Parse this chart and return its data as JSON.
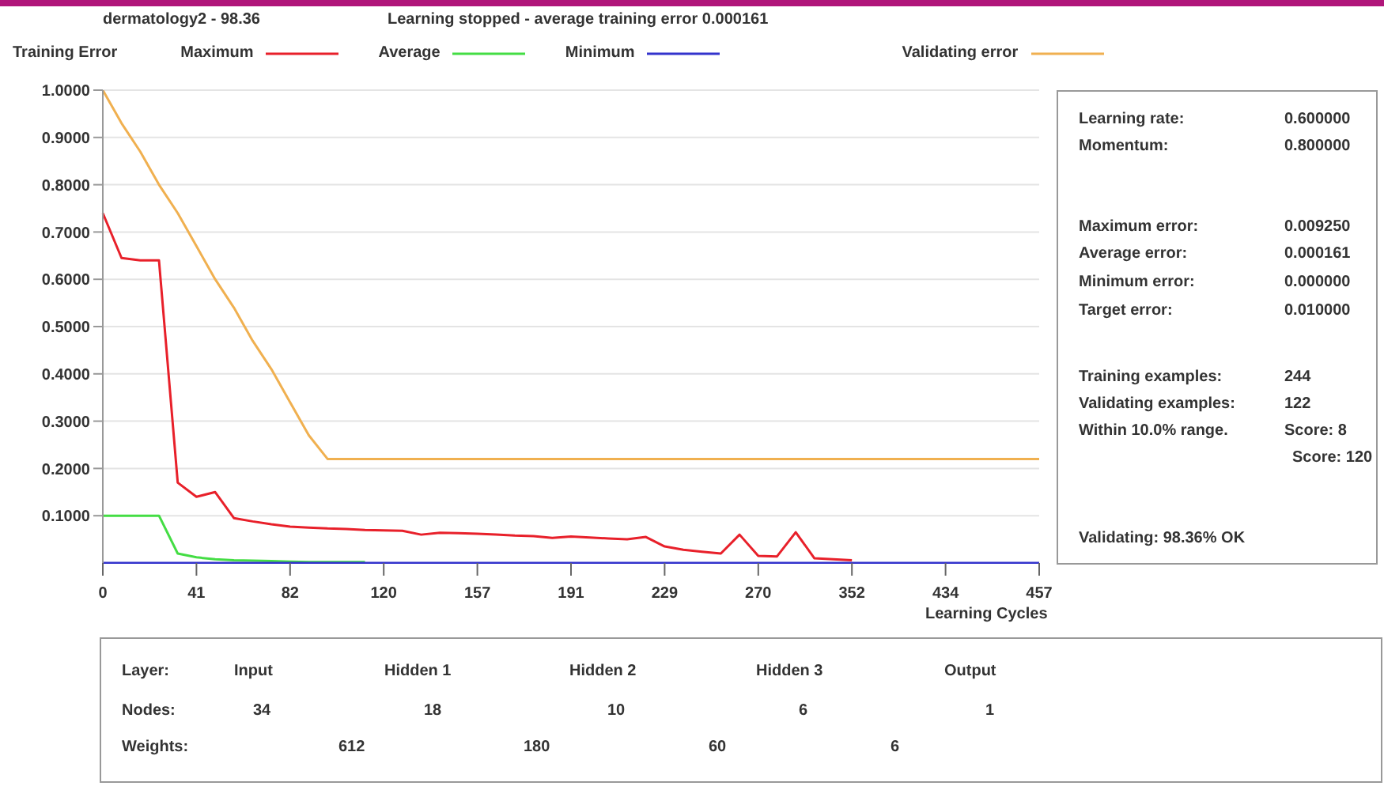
{
  "chart_data": {
    "type": "line",
    "title": "dermatology2 - 98.36",
    "subtitle": "Learning stopped - average training error 0.000161",
    "legend_title": "Training Error",
    "xlabel": "Learning Cycles",
    "categories": [
      "0",
      null,
      null,
      null,
      null,
      "41",
      null,
      null,
      null,
      null,
      "82",
      null,
      null,
      null,
      null,
      "120",
      null,
      null,
      null,
      null,
      "157",
      null,
      null,
      null,
      null,
      "191",
      null,
      null,
      null,
      null,
      "229",
      null,
      null,
      null,
      null,
      "270",
      null,
      null,
      null,
      null,
      "352",
      null,
      null,
      null,
      null,
      "434",
      null,
      null,
      null,
      null,
      "457"
    ],
    "series": [
      {
        "name": "Maximum",
        "color": "#e8202a",
        "values": [
          0.74,
          0.645,
          0.64,
          0.64,
          0.17,
          0.14,
          0.15,
          0.095,
          0.088,
          0.082,
          0.077,
          0.075,
          0.073,
          0.072,
          0.07,
          0.069,
          0.068,
          0.06,
          0.064,
          0.063,
          0.062,
          0.06,
          0.058,
          0.057,
          0.053,
          0.056,
          0.054,
          0.052,
          0.05,
          0.055,
          0.035,
          0.028,
          0.024,
          0.02,
          0.06,
          0.015,
          0.014,
          0.065,
          0.01,
          0.008,
          0.006,
          null,
          null,
          null,
          null,
          null,
          null,
          null,
          null,
          null,
          null
        ]
      },
      {
        "name": "Average",
        "color": "#44dd44",
        "values": [
          0.1,
          0.1,
          0.1,
          0.1,
          0.02,
          0.012,
          0.008,
          0.006,
          0.005,
          0.004,
          0.003,
          0.002,
          0.002,
          0.002,
          0.002,
          null,
          null,
          null,
          null,
          null,
          null,
          null,
          null,
          null,
          null,
          null,
          null,
          null,
          null,
          null,
          null,
          null,
          null,
          null,
          null,
          null,
          null,
          null,
          null,
          null,
          null,
          null,
          null,
          null,
          null,
          null,
          null,
          null,
          null,
          null,
          null
        ]
      },
      {
        "name": "Minimum",
        "color": "#3333cc",
        "values": [
          0,
          0,
          0,
          0,
          0,
          0,
          0,
          0,
          0,
          0,
          0,
          0,
          0,
          0,
          0,
          0,
          0,
          0,
          0,
          0,
          0,
          0,
          0,
          0,
          0,
          0,
          0,
          0,
          0,
          0,
          0,
          0,
          0,
          0,
          0,
          0,
          0,
          0,
          0,
          0,
          0,
          0,
          0,
          0,
          0,
          0,
          0,
          0,
          0,
          0,
          0
        ]
      },
      {
        "name": "Validating error",
        "color": "#f0b050",
        "values": [
          1,
          0.93,
          0.87,
          0.8,
          0.74,
          0.67,
          0.6,
          0.54,
          0.47,
          0.41,
          0.34,
          0.27,
          0.22,
          0.22,
          0.22,
          0.22,
          0.22,
          0.22,
          0.22,
          0.22,
          0.22,
          0.22,
          0.22,
          0.22,
          0.22,
          0.22,
          0.22,
          0.22,
          0.22,
          0.22,
          0.22,
          0.22,
          0.22,
          0.22,
          0.22,
          0.22,
          0.22,
          0.22,
          0.22,
          0.22,
          0.22,
          0.22,
          0.22,
          0.22,
          0.22,
          0.22,
          0.22,
          0.22,
          0.22,
          0.22,
          0.22
        ]
      }
    ],
    "ylim": [
      0,
      1
    ],
    "yticks": [
      {
        "value": 0.1,
        "label": "0.1000"
      },
      {
        "value": 0.2,
        "label": "0.2000"
      },
      {
        "value": 0.3,
        "label": "0.3000"
      },
      {
        "value": 0.4,
        "label": "0.4000"
      },
      {
        "value": 0.5,
        "label": "0.5000"
      },
      {
        "value": 0.6,
        "label": "0.6000"
      },
      {
        "value": 0.7,
        "label": "0.7000"
      },
      {
        "value": 0.8,
        "label": "0.8000"
      },
      {
        "value": 0.9,
        "label": "0.9000"
      },
      {
        "value": 1,
        "label": "1.0000"
      }
    ],
    "grid": "y",
    "legend": "top",
    "marker": "none",
    "line_style": "solid",
    "annotations": [
      "Learning rate:",
      "0.600000",
      "Momentum:",
      "0.800000",
      "Maximum error:",
      "0.009250",
      "Average error:",
      "0.000161",
      "Minimum error:",
      "0.000000",
      "Target error:",
      "0.010000",
      "Training examples:",
      "244",
      "Validating examples:",
      "122",
      "Within 10.0% range.",
      "Score: 8",
      "Score: 120",
      "Validating: 98.36% OK",
      "Layer:",
      "Input",
      "Hidden 1",
      "Hidden 2",
      "Hidden 3",
      "Output",
      "Nodes:",
      "34",
      "18",
      "10",
      "6",
      "1",
      "Weights:",
      "612",
      "180",
      "60",
      "6"
    ]
  }
}
